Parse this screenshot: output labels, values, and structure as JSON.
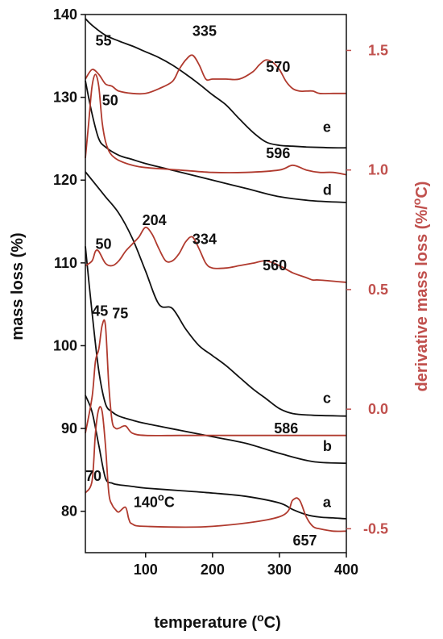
{
  "chart_data": {
    "type": "line",
    "xlabel": "temperature (°C)",
    "ylabel_left": "mass loss (%)",
    "ylabel_right": "derivative mass loss (%/°C)",
    "xlim": [
      10,
      400
    ],
    "ylim_left": [
      75,
      140
    ],
    "ylim_right": [
      -0.6,
      1.65
    ],
    "x_ticks": [
      "100",
      "200",
      "300",
      "400"
    ],
    "y_ticks_left": [
      "80",
      "90",
      "100",
      "110",
      "120",
      "130",
      "140"
    ],
    "y_ticks_right": [
      "-0.5",
      "0.0",
      "0.5",
      "1.0",
      "1.5"
    ],
    "colors": {
      "mass": "#111111",
      "derivative": "#b03a2e",
      "right_axis": "#c0504d"
    },
    "curve_labels": [
      "a",
      "b",
      "c",
      "d",
      "e"
    ],
    "series": [
      {
        "axis": "left",
        "curve": "a",
        "x": [
          10,
          20,
          30,
          40,
          50,
          60,
          80,
          100,
          150,
          200,
          250,
          300,
          320,
          340,
          360,
          380,
          400
        ],
        "y": [
          94,
          92,
          88,
          84,
          83.4,
          83.2,
          83,
          82.8,
          82.5,
          82.2,
          81.8,
          81,
          80.2,
          79.6,
          79.3,
          79.2,
          79.1
        ]
      },
      {
        "axis": "left",
        "curve": "b",
        "x": [
          10,
          20,
          30,
          40,
          50,
          60,
          80,
          100,
          150,
          200,
          250,
          300,
          350,
          400
        ],
        "y": [
          112,
          104,
          97,
          93,
          92,
          91.5,
          91,
          90.6,
          89.8,
          89,
          88.2,
          87,
          86,
          85.8
        ]
      },
      {
        "axis": "left",
        "curve": "c",
        "x": [
          10,
          20,
          40,
          60,
          80,
          100,
          120,
          140,
          160,
          180,
          200,
          220,
          240,
          260,
          280,
          300,
          320,
          350,
          400
        ],
        "y": [
          121,
          120,
          118,
          116,
          113,
          109,
          105,
          104.5,
          102,
          100,
          98.8,
          97.6,
          96.2,
          94.8,
          93.6,
          92.4,
          91.8,
          91.6,
          91.5
        ]
      },
      {
        "axis": "left",
        "curve": "d",
        "x": [
          10,
          20,
          30,
          40,
          60,
          80,
          100,
          150,
          200,
          250,
          300,
          350,
          400
        ],
        "y": [
          132,
          128,
          125,
          124,
          123,
          122.5,
          122,
          121,
          120,
          119,
          118,
          117.5,
          117.3
        ]
      },
      {
        "axis": "left",
        "curve": "e",
        "x": [
          10,
          20,
          40,
          60,
          80,
          100,
          120,
          140,
          160,
          180,
          200,
          220,
          240,
          260,
          280,
          300,
          320,
          340,
          360,
          380,
          400
        ],
        "y": [
          139.5,
          138.7,
          137.5,
          136.8,
          136.2,
          135.5,
          134.8,
          133.9,
          132.8,
          131.6,
          130.3,
          129.1,
          127.4,
          125.8,
          124.6,
          124.2,
          124.1,
          124,
          123.95,
          123.9,
          123.9
        ]
      },
      {
        "axis": "right",
        "curve": "a",
        "x": [
          10,
          20,
          25,
          30,
          35,
          40,
          45,
          50,
          55,
          60,
          70,
          75,
          80,
          100,
          200,
          300,
          320,
          330,
          340,
          350,
          360,
          380,
          400
        ],
        "y": [
          -0.35,
          -0.3,
          -0.1,
          0.0,
          -0.01,
          -0.15,
          -0.35,
          -0.4,
          -0.42,
          -0.43,
          -0.41,
          -0.46,
          -0.48,
          -0.49,
          -0.49,
          -0.45,
          -0.38,
          -0.38,
          -0.45,
          -0.49,
          -0.5,
          -0.51,
          -0.51
        ]
      },
      {
        "axis": "right",
        "curve": "b",
        "x": [
          10,
          20,
          25,
          30,
          35,
          40,
          45,
          50,
          55,
          60,
          70,
          80,
          100,
          150,
          200,
          250,
          300,
          350,
          400
        ],
        "y": [
          -0.1,
          0.05,
          0.2,
          0.25,
          0.35,
          0.35,
          0.1,
          -0.05,
          -0.08,
          -0.08,
          -0.07,
          -0.1,
          -0.11,
          -0.11,
          -0.11,
          -0.11,
          -0.11,
          -0.11,
          -0.11
        ]
      },
      {
        "axis": "right",
        "curve": "c",
        "x": [
          10,
          20,
          25,
          30,
          40,
          50,
          60,
          70,
          80,
          90,
          100,
          110,
          120,
          130,
          140,
          150,
          160,
          170,
          180,
          190,
          200,
          220,
          240,
          260,
          280,
          300,
          320,
          340,
          350,
          360,
          400
        ],
        "y": [
          0.6,
          0.62,
          0.66,
          0.66,
          0.61,
          0.6,
          0.62,
          0.66,
          0.69,
          0.72,
          0.76,
          0.73,
          0.67,
          0.62,
          0.62,
          0.65,
          0.7,
          0.72,
          0.67,
          0.61,
          0.59,
          0.59,
          0.6,
          0.61,
          0.62,
          0.6,
          0.57,
          0.55,
          0.54,
          0.54,
          0.53
        ]
      },
      {
        "axis": "right",
        "curve": "d",
        "x": [
          10,
          15,
          20,
          25,
          30,
          35,
          40,
          45,
          50,
          60,
          80,
          100,
          150,
          200,
          250,
          300,
          320,
          340,
          360,
          380,
          400
        ],
        "y": [
          1.05,
          1.2,
          1.35,
          1.4,
          1.35,
          1.2,
          1.12,
          1.08,
          1.06,
          1.04,
          1.02,
          1.01,
          1.0,
          0.99,
          0.99,
          1.0,
          1.02,
          1.0,
          0.99,
          0.99,
          0.98
        ]
      },
      {
        "axis": "right",
        "curve": "e",
        "x": [
          10,
          20,
          30,
          40,
          50,
          60,
          80,
          100,
          120,
          140,
          150,
          160,
          170,
          180,
          190,
          200,
          220,
          240,
          260,
          270,
          280,
          290,
          300,
          310,
          320,
          330,
          340,
          350,
          360,
          380,
          400
        ],
        "y": [
          1.38,
          1.42,
          1.4,
          1.36,
          1.35,
          1.33,
          1.32,
          1.32,
          1.34,
          1.37,
          1.42,
          1.46,
          1.48,
          1.44,
          1.38,
          1.38,
          1.38,
          1.38,
          1.41,
          1.44,
          1.46,
          1.45,
          1.42,
          1.37,
          1.34,
          1.33,
          1.33,
          1.33,
          1.32,
          1.32,
          1.32
        ]
      }
    ],
    "annotations": [
      {
        "text": "55",
        "x": 25,
        "y_right": 1.52
      },
      {
        "text": "335",
        "x": 170,
        "y_right": 1.56
      },
      {
        "text": "570",
        "x": 280,
        "y_right": 1.41
      },
      {
        "text": "50",
        "x": 35,
        "y_right": 1.27
      },
      {
        "text": "596",
        "x": 280,
        "y_right": 1.05
      },
      {
        "text": "204",
        "x": 95,
        "y_right": 0.77
      },
      {
        "text": "334",
        "x": 170,
        "y_right": 0.69
      },
      {
        "text": "560",
        "x": 275,
        "y_right": 0.58
      },
      {
        "text": "50",
        "x": 25,
        "y_right": 0.67
      },
      {
        "text": "45",
        "x": 20,
        "y_right": 0.39
      },
      {
        "text": "75",
        "x": 50,
        "y_right": 0.38
      },
      {
        "text": "586",
        "x": 292,
        "y_right": -0.1
      },
      {
        "text": "70",
        "x": 10,
        "y_right": -0.3
      },
      {
        "text": "140°C",
        "x": 82,
        "y_right": -0.41
      },
      {
        "text": "657",
        "x": 320,
        "y_right": -0.57
      },
      {
        "text": "e",
        "x": 365,
        "y_left": 125.8
      },
      {
        "text": "d",
        "x": 365,
        "y_left": 118.2
      },
      {
        "text": "c",
        "x": 365,
        "y_left": 93.1
      },
      {
        "text": "b",
        "x": 365,
        "y_left": 87.3
      },
      {
        "text": "a",
        "x": 365,
        "y_left": 80.5
      }
    ]
  }
}
